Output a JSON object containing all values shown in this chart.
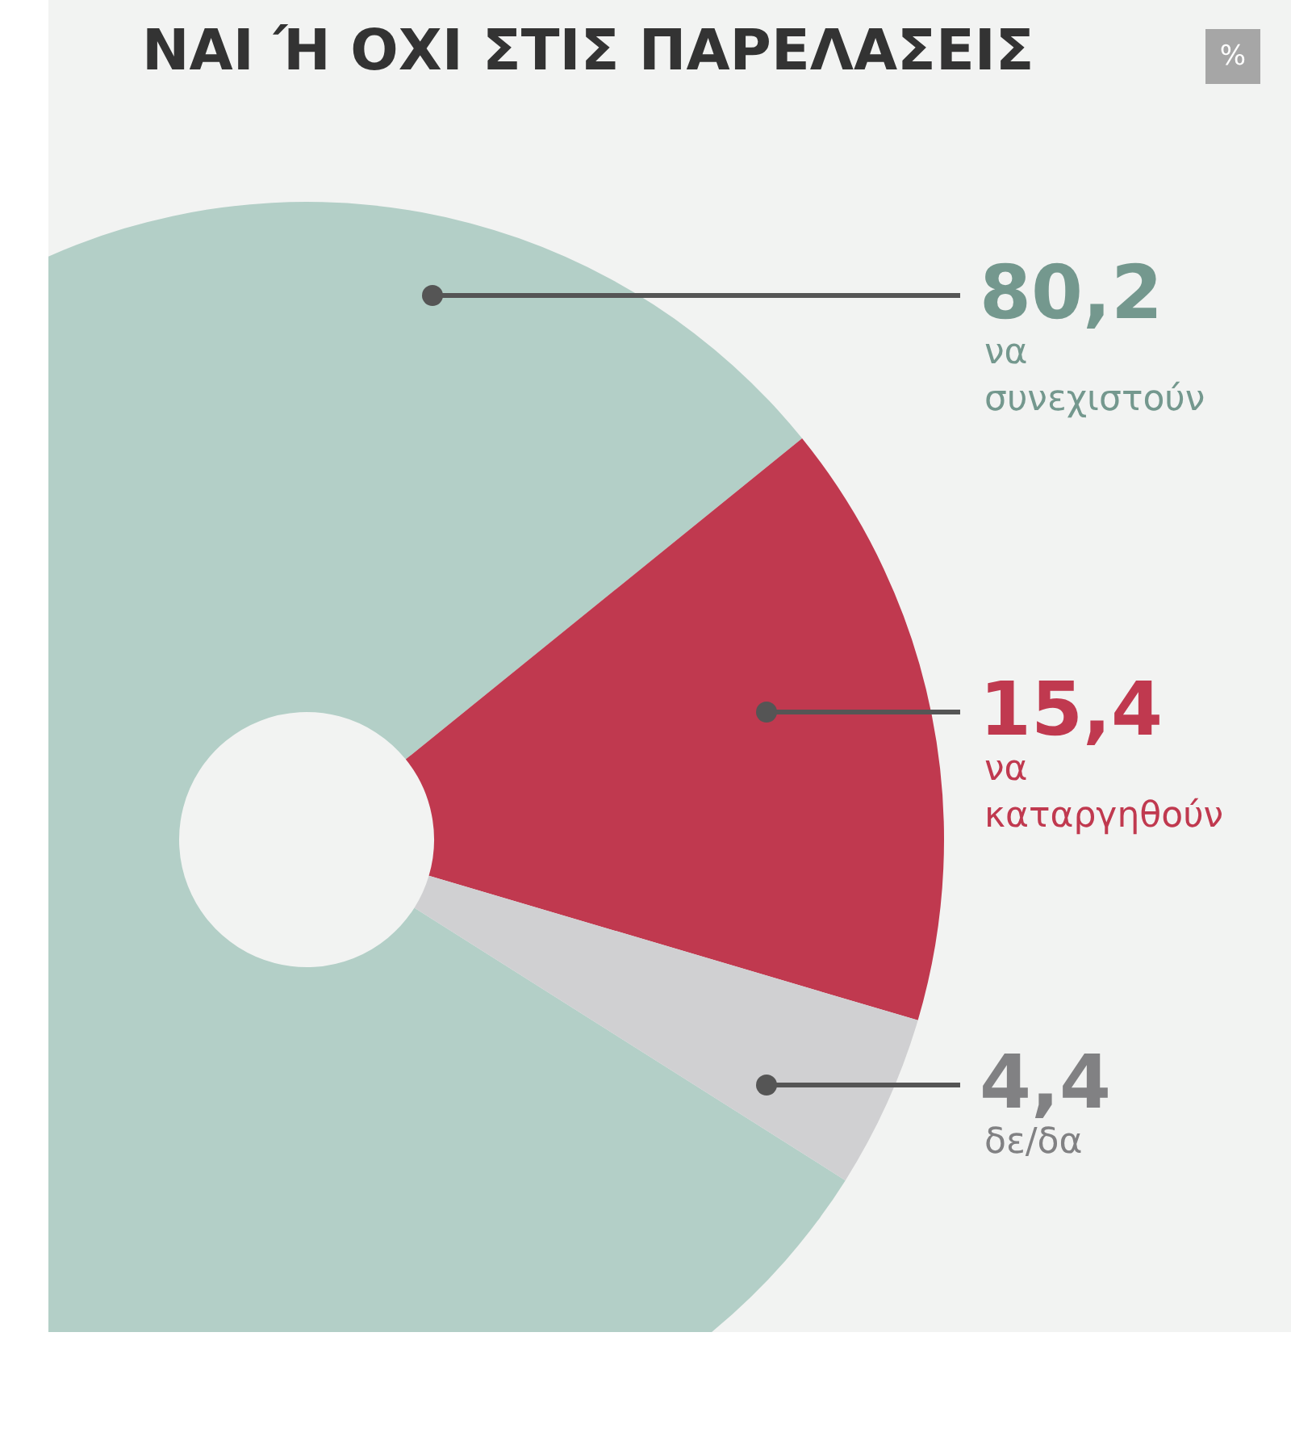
{
  "chart_data": {
    "type": "donut",
    "title": "ΝΑΙ Ή ΟΧΙ ΣΤΙΣ ΠΑΡΕΛΑΣΕΙΣ",
    "annotations": [
      "%"
    ],
    "categories": [
      "να συνεχιστούν",
      "να καταργηθούν",
      "δε/δα"
    ],
    "values": [
      80.2,
      15.4,
      4.4
    ],
    "colors": [
      "#b3cfc7",
      "#c0394f",
      "#d0d0d2"
    ],
    "value_labels": [
      "80,2",
      "15,4",
      "4,4"
    ],
    "legend": false
  }
}
